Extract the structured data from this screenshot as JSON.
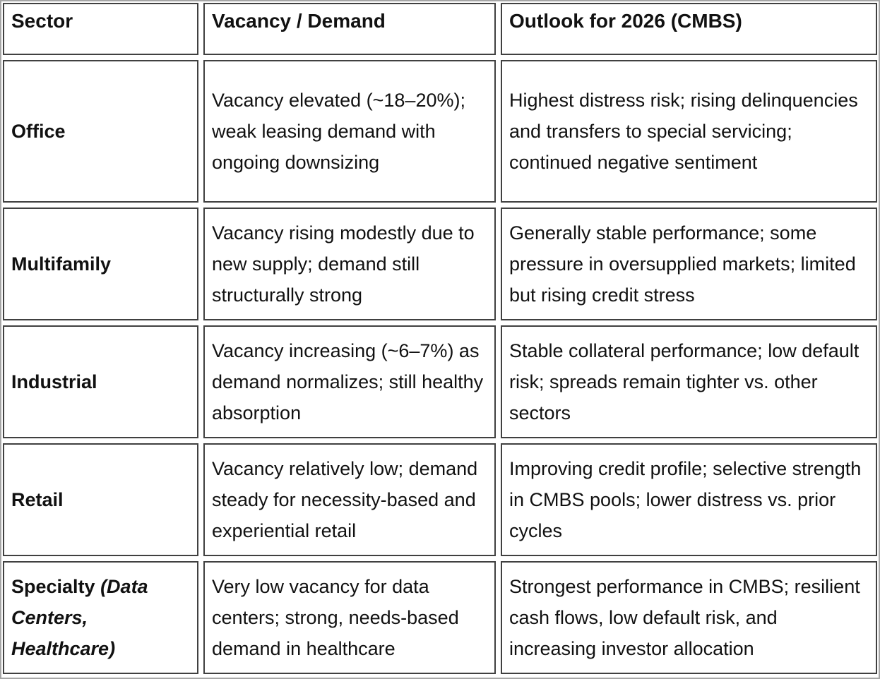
{
  "table": {
    "headers": [
      "Sector",
      "Vacancy / Demand",
      "Outlook for 2026 (CMBS)"
    ],
    "rows": [
      {
        "sector": "Office",
        "sector_italic": "",
        "vacancy": "Vacancy elevated (~18–20%); weak leasing demand with ongoing downsizing",
        "outlook": "Highest distress risk; rising delinquencies and transfers to special servicing; continued negative sentiment"
      },
      {
        "sector": "Multifamily",
        "sector_italic": "",
        "vacancy": "Vacancy rising modestly due to new supply; demand still structurally strong",
        "outlook": "Generally stable performance; some pressure in oversupplied markets; limited but rising credit stress"
      },
      {
        "sector": "Industrial",
        "sector_italic": "",
        "vacancy": "Vacancy increasing (~6–7%) as demand normalizes; still healthy absorption",
        "outlook": "Stable collateral performance; low default risk; spreads remain tighter vs. other sectors"
      },
      {
        "sector": "Retail",
        "sector_italic": "",
        "vacancy": "Vacancy relatively low; demand steady for necessity-based and experiential retail",
        "outlook": "Improving credit profile; selective strength in CMBS pools; lower distress vs. prior cycles"
      },
      {
        "sector": "Specialty ",
        "sector_italic": "(Data Centers, Healthcare)",
        "vacancy": "Very low vacancy for data centers; strong, needs-based demand in healthcare",
        "outlook": "Strongest performance in CMBS; resilient cash flows, low default risk, and increasing investor allocation"
      }
    ],
    "colors": {
      "cell_border": "#404040",
      "frame_border": "#a6a6a6",
      "text": "#111111",
      "background": "#ffffff"
    }
  }
}
